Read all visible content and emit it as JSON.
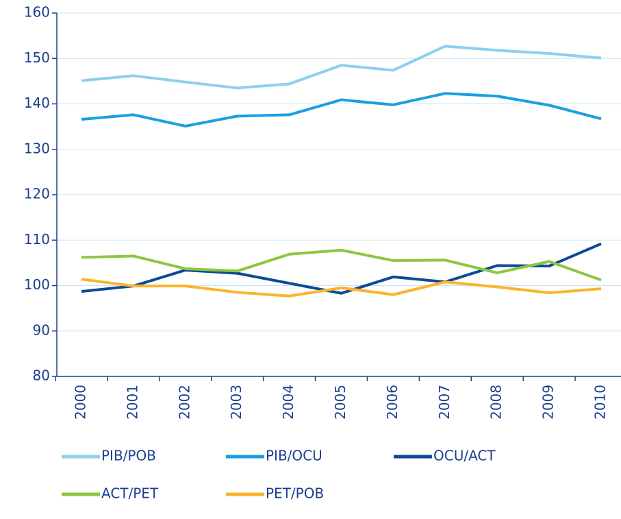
{
  "chart_data": {
    "type": "line",
    "categories": [
      "2000",
      "2001",
      "2002",
      "2003",
      "2004",
      "2005",
      "2006",
      "2007",
      "2008",
      "2009",
      "2010"
    ],
    "series": [
      {
        "name": "PIB/POB",
        "color": "#8ecfee",
        "values": [
          145.1,
          146.2,
          144.8,
          143.5,
          144.4,
          148.5,
          147.4,
          152.7,
          151.8,
          151.1,
          150.1
        ]
      },
      {
        "name": "PIB/OCU",
        "color": "#1b9fe0",
        "values": [
          136.6,
          137.6,
          135.1,
          137.3,
          137.6,
          140.9,
          139.8,
          142.3,
          141.7,
          139.7,
          136.7
        ]
      },
      {
        "name": "OCU/ACT",
        "color": "#0c4a96",
        "values": [
          98.7,
          99.9,
          103.4,
          102.7,
          100.5,
          98.3,
          101.9,
          100.8,
          104.4,
          104.3,
          109.2
        ]
      },
      {
        "name": "ACT/PET",
        "color": "#8dc63f",
        "values": [
          106.2,
          106.5,
          103.7,
          103.2,
          106.9,
          107.8,
          105.5,
          105.6,
          102.8,
          105.3,
          101.2
        ]
      },
      {
        "name": "PET/POB",
        "color": "#fbb42c",
        "values": [
          101.4,
          99.9,
          99.9,
          98.5,
          97.7,
          99.5,
          98.0,
          100.8,
          99.7,
          98.4,
          99.3
        ]
      }
    ],
    "ylim": [
      80,
      160
    ],
    "yticks": [
      80,
      90,
      100,
      110,
      120,
      130,
      140,
      150,
      160
    ],
    "grid": true
  }
}
